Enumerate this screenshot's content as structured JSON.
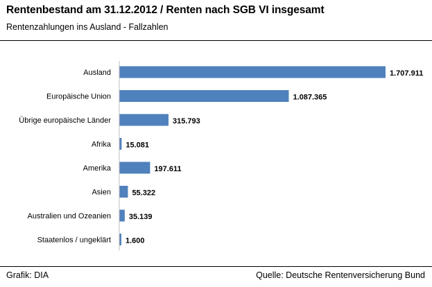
{
  "header": {
    "title": "Rentenbestand am 31.12.2012 / Renten nach SGB VI insgesamt",
    "subtitle": "Rentenzahlungen ins Ausland - Fallzahlen"
  },
  "footer": {
    "left": "Grafik: DIA",
    "right": "Quelle: Deutsche Rentenversicherung Bund"
  },
  "colors": {
    "bar": "#4f81bd",
    "text": "#000000",
    "background": "#ffffff"
  },
  "chart_data": {
    "type": "bar",
    "orientation": "horizontal",
    "title": "Rentenbestand am 31.12.2012 / Renten nach SGB VI insgesamt",
    "subtitle": "Rentenzahlungen ins Ausland - Fallzahlen",
    "categories": [
      "Ausland",
      "Europäische Union",
      "Übrige europäische Länder",
      "Afrika",
      "Amerika",
      "Asien",
      "Australien und Ozeanien",
      "Staatenlos / ungeklärt"
    ],
    "values": [
      1707911,
      1087365,
      315793,
      15081,
      197611,
      55322,
      35139,
      1600
    ],
    "value_labels": [
      "1.707.911",
      "1.087.365",
      "315.793",
      "15.081",
      "197.611",
      "55.322",
      "35.139",
      "1.600"
    ],
    "xlim": [
      0,
      1707911
    ],
    "grid": false,
    "legend": "none"
  }
}
